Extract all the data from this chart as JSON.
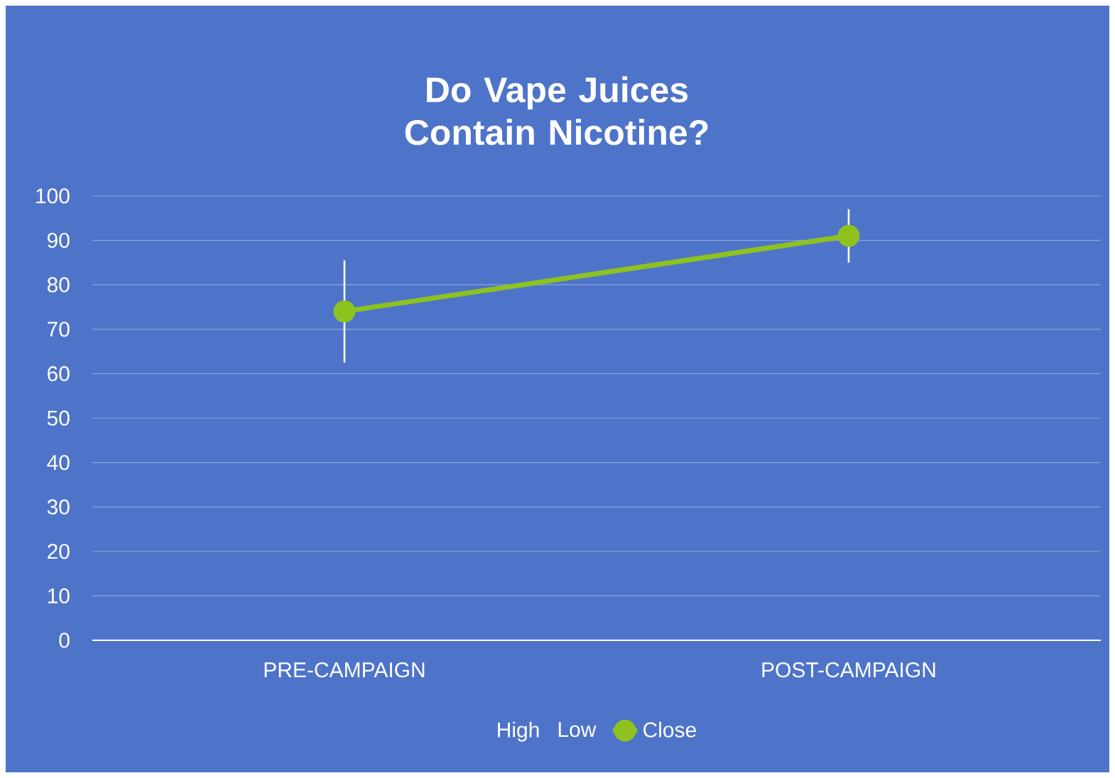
{
  "chart_data": {
    "type": "line",
    "title": "Do Vape Juices Contain Nicotine?",
    "categories": [
      "PRE-CAMPAIGN",
      "POST-CAMPAIGN"
    ],
    "series": [
      {
        "name": "High",
        "values": [
          null,
          null
        ]
      },
      {
        "name": "Low",
        "values": [
          null,
          null
        ]
      },
      {
        "name": "Close",
        "color": "#8dc21f",
        "values": [
          74,
          91
        ],
        "errors": [
          [
            62.5,
            85.5
          ],
          [
            85,
            97
          ]
        ],
        "marker": "circle",
        "line_style": "solid"
      }
    ],
    "ylim": [
      0,
      100
    ],
    "yticks": [
      0,
      10,
      20,
      30,
      40,
      50,
      60,
      70,
      80,
      90,
      100
    ],
    "grid": "y",
    "legend": "bottom"
  }
}
